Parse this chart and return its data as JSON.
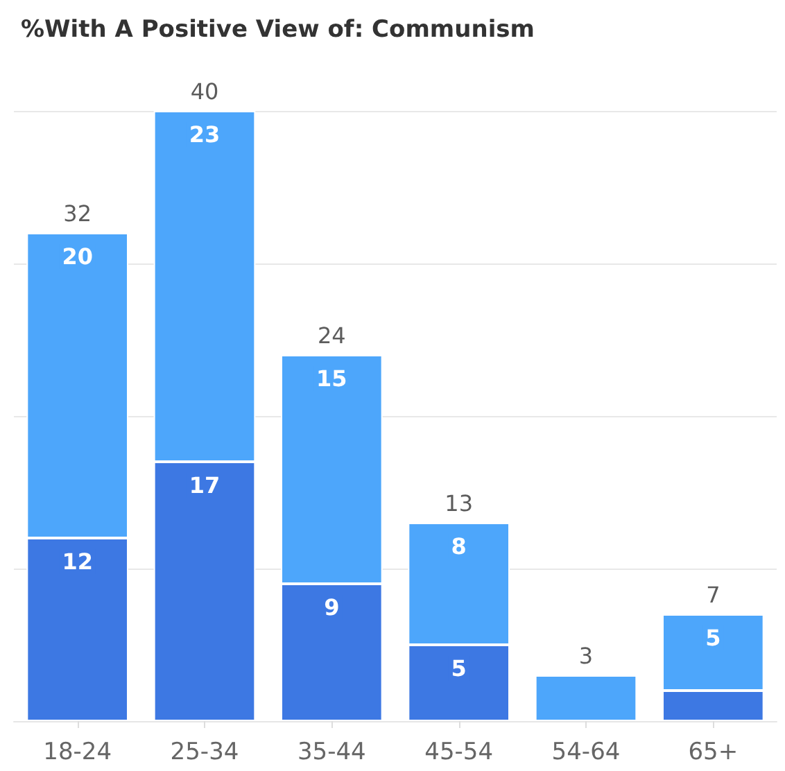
{
  "chart_data": {
    "type": "bar",
    "title": "%With A Positive View of: Communism",
    "stacked": true,
    "categories": [
      "18-24",
      "25-34",
      "35-44",
      "45-54",
      "54-64",
      "65+"
    ],
    "series": [
      {
        "color": "#3d78e3",
        "values": [
          12,
          17,
          9,
          5,
          null,
          2
        ],
        "value_labels": [
          "12",
          "17",
          "9",
          "5",
          null,
          null
        ]
      },
      {
        "color": "#4da6fb",
        "values": [
          20,
          23,
          15,
          8,
          3,
          5
        ],
        "value_labels": [
          "20",
          "23",
          "15",
          "8",
          null,
          "5"
        ]
      }
    ],
    "totals": [
      "32",
      "40",
      "24",
      "13",
      "3",
      "7"
    ],
    "ylim": [
      0,
      40
    ],
    "yticks": [
      {
        "value": 0,
        "label": null
      },
      {
        "value": 10,
        "label": null
      },
      {
        "value": 20,
        "label": null
      },
      {
        "value": 30,
        "label": null
      },
      {
        "value": 40,
        "label": null
      }
    ],
    "tick_labels": "x",
    "grid": "y"
  }
}
